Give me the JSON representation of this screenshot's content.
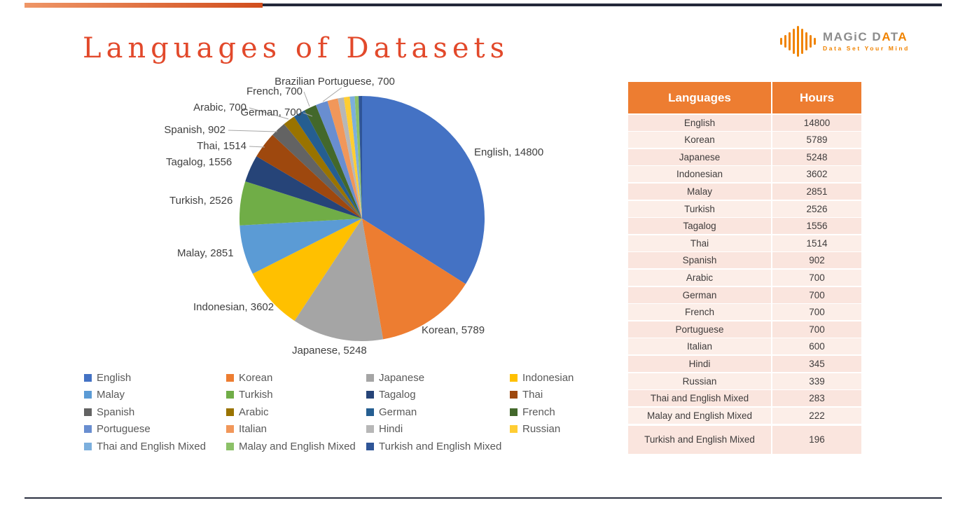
{
  "title": "Languages of Datasets",
  "brand": {
    "magic": "MAGiC",
    "data_letters": [
      "D",
      "A",
      "T",
      "A"
    ],
    "tagline": "Data Set Your Mind",
    "accent_color": "#f08300"
  },
  "chart_data": {
    "type": "pie",
    "title": "Languages of Datasets",
    "series_name": "Hours",
    "categories": [
      "English",
      "Korean",
      "Japanese",
      "Indonesian",
      "Malay",
      "Turkish",
      "Tagalog",
      "Thai",
      "Spanish",
      "Arabic",
      "German",
      "French",
      "Portuguese",
      "Italian",
      "Hindi",
      "Russian",
      "Thai and English Mixed",
      "Malay and English Mixed",
      "Turkish and English Mixed"
    ],
    "values": [
      14800,
      5789,
      5248,
      3602,
      2851,
      2526,
      1556,
      1514,
      902,
      700,
      700,
      700,
      700,
      600,
      345,
      339,
      283,
      222,
      196
    ],
    "colors": [
      "#4472C4",
      "#ED7D31",
      "#A5A5A5",
      "#FFC000",
      "#5B9BD5",
      "#70AD47",
      "#264478",
      "#9E480E",
      "#636363",
      "#997300",
      "#255E91",
      "#43682B",
      "#698ED0",
      "#F1975A",
      "#B7B7B7",
      "#FFCD33",
      "#7CAFDD",
      "#8CC168",
      "#2F5597"
    ],
    "callouts": [
      "English, 14800",
      "Korean, 5789",
      "Japanese, 5248",
      "Indonesian, 3602",
      "Malay, 2851",
      "Turkish, 2526",
      "Tagalog, 1556",
      "Thai, 1514",
      "Spanish, 902",
      "Arabic, 700",
      "German, 700",
      "French, 700",
      "Brazilian Portuguese, 700"
    ],
    "legend_position": "bottom",
    "start_angle": 0,
    "direction": "clockwise"
  },
  "table": {
    "headers": [
      "Languages",
      "Hours"
    ],
    "header_color": "#ED7D31",
    "rows": [
      [
        "English",
        "14800"
      ],
      [
        "Korean",
        "5789"
      ],
      [
        "Japanese",
        "5248"
      ],
      [
        "Indonesian",
        "3602"
      ],
      [
        "Malay",
        "2851"
      ],
      [
        "Turkish",
        "2526"
      ],
      [
        "Tagalog",
        "1556"
      ],
      [
        "Thai",
        "1514"
      ],
      [
        "Spanish",
        "902"
      ],
      [
        "Arabic",
        "700"
      ],
      [
        "German",
        "700"
      ],
      [
        "French",
        "700"
      ],
      [
        "Portuguese",
        "700"
      ],
      [
        "Italian",
        "600"
      ],
      [
        "Hindi",
        "345"
      ],
      [
        "Russian",
        "339"
      ],
      [
        "Thai and English Mixed",
        "283"
      ],
      [
        "Malay and English Mixed",
        "222"
      ],
      [
        "Turkish and English Mixed",
        "196"
      ]
    ]
  }
}
